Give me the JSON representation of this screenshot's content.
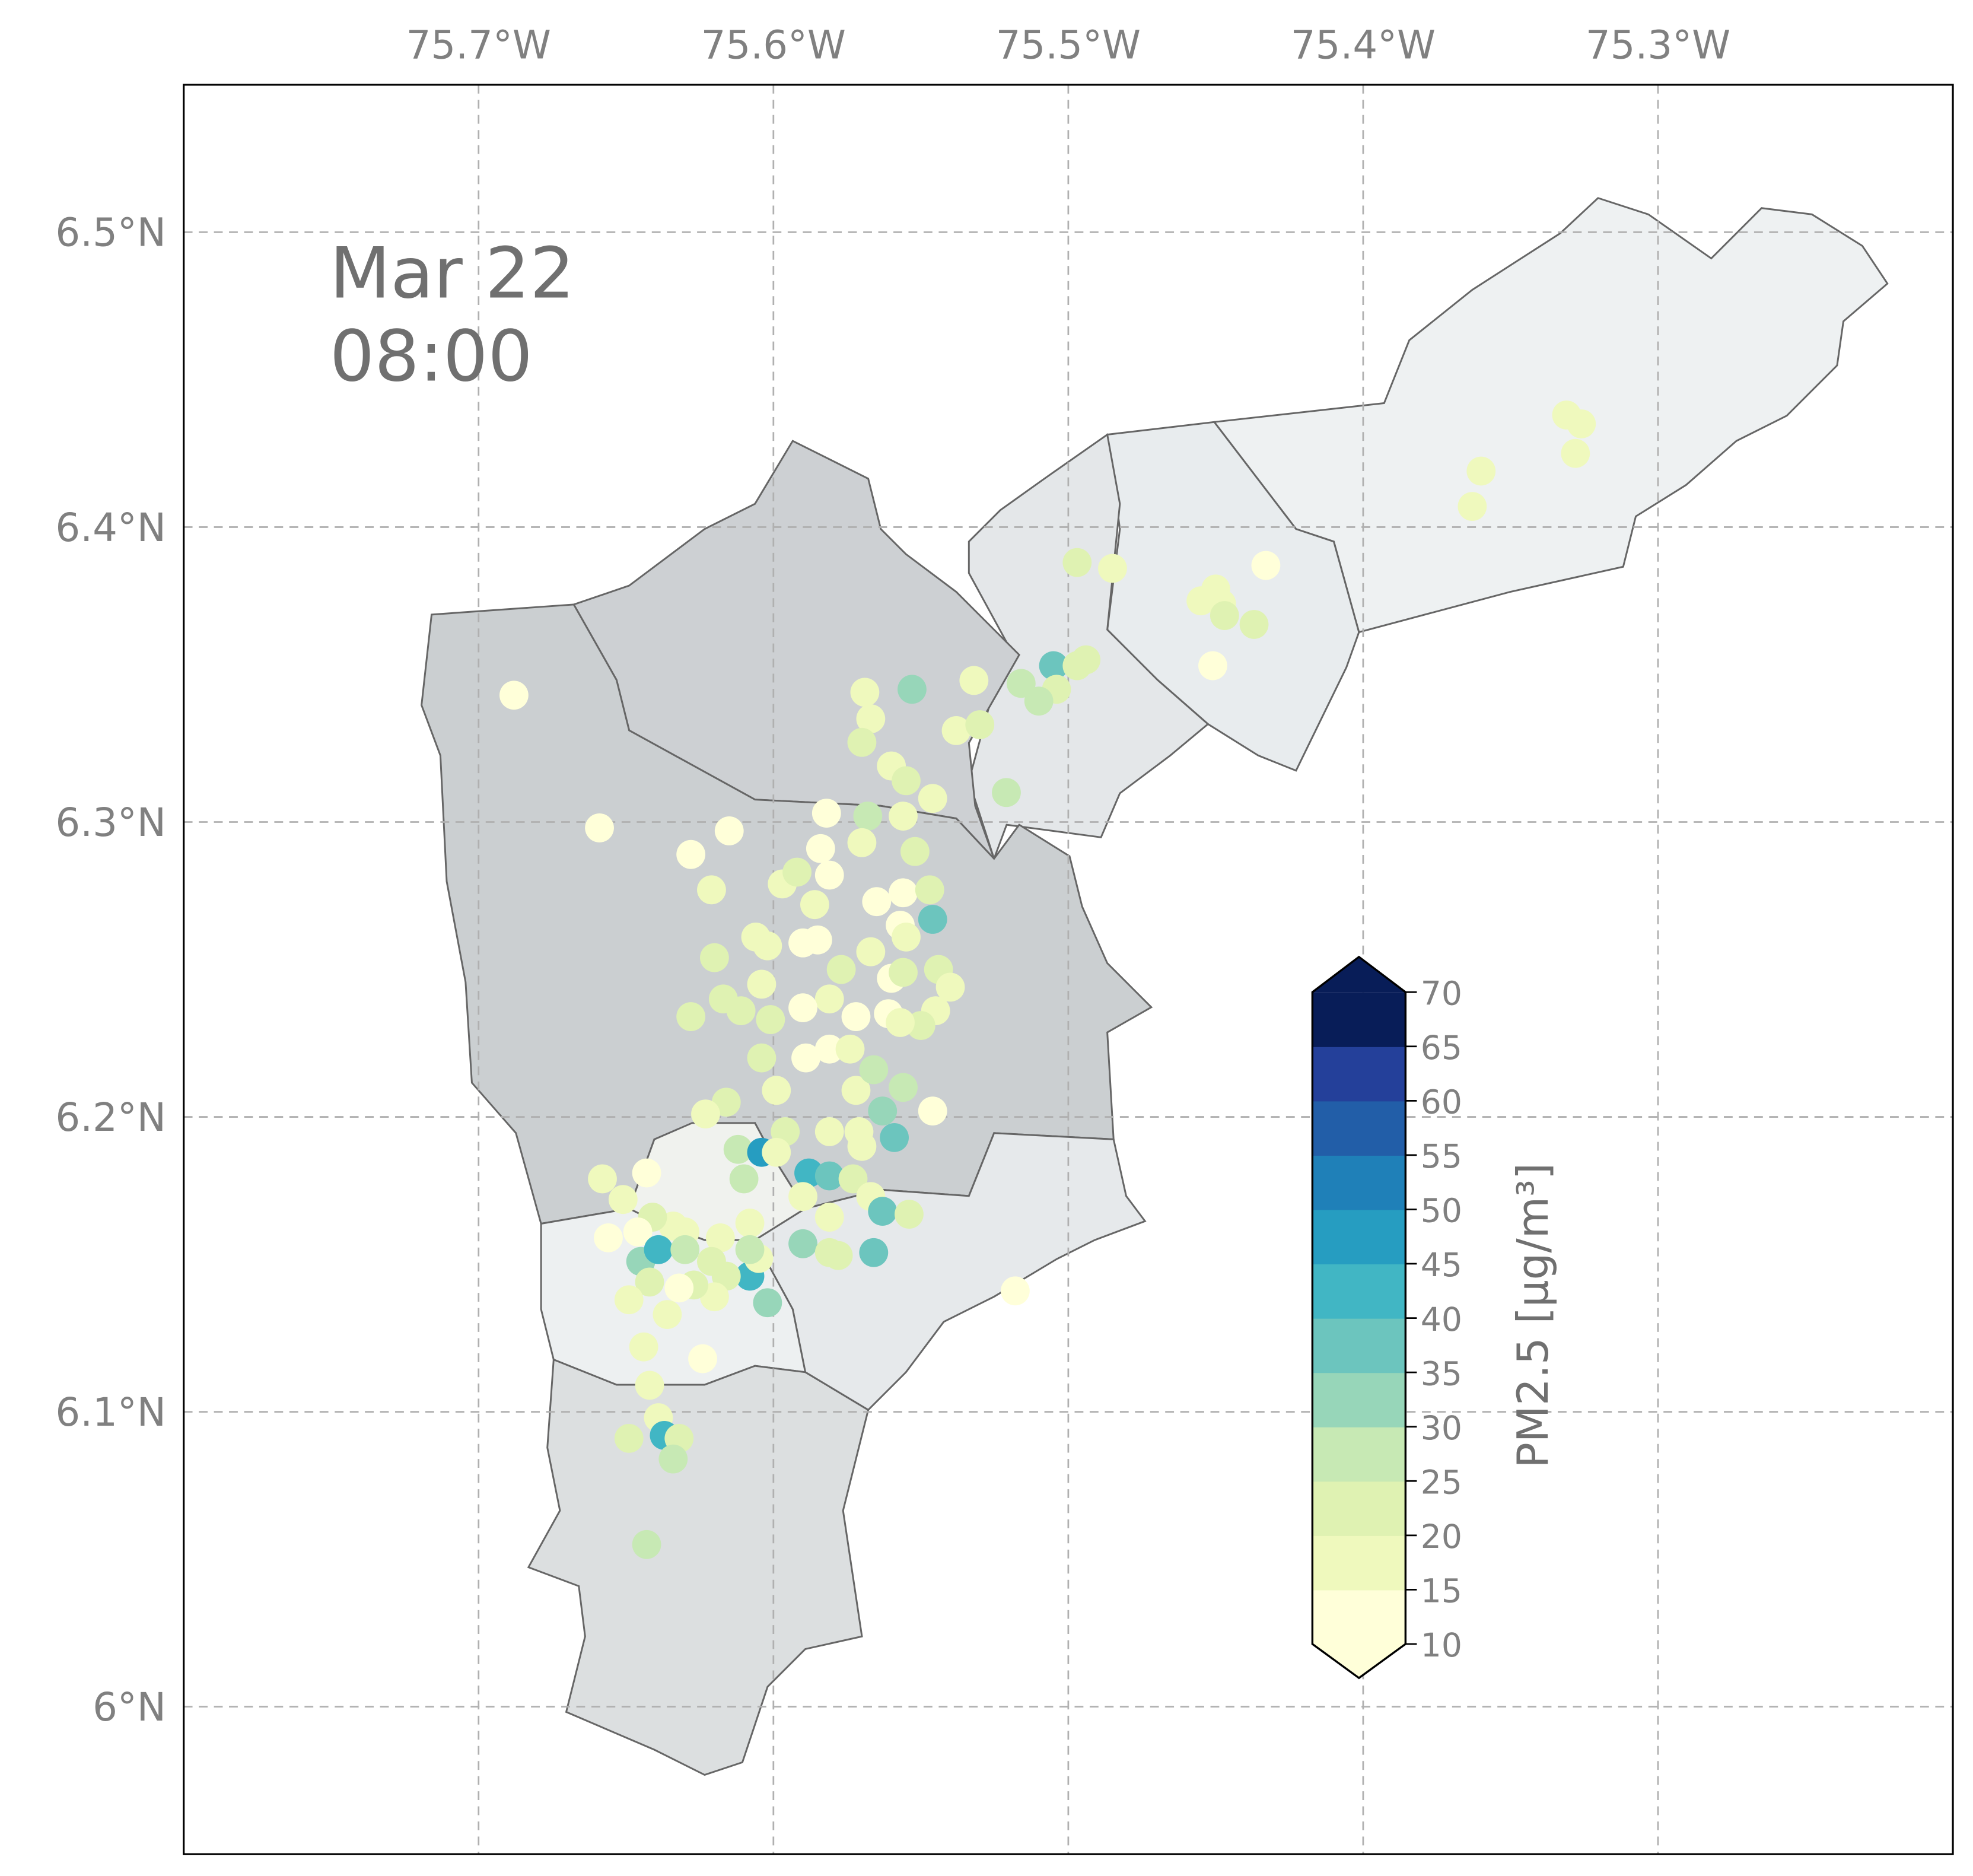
{
  "map": {
    "extent": {
      "lon": [
        -75.8,
        -75.2
      ],
      "lat": [
        5.95,
        6.55
      ]
    },
    "lon_ticks": [
      {
        "value": -75.7,
        "label": "75.7°W"
      },
      {
        "value": -75.6,
        "label": "75.6°W"
      },
      {
        "value": -75.5,
        "label": "75.5°W"
      },
      {
        "value": -75.4,
        "label": "75.4°W"
      },
      {
        "value": -75.3,
        "label": "75.3°W"
      }
    ],
    "lat_ticks": [
      {
        "value": 6.5,
        "label": "6.5°N"
      },
      {
        "value": 6.4,
        "label": "6.4°N"
      },
      {
        "value": 6.3,
        "label": "6.3°N"
      },
      {
        "value": 6.2,
        "label": "6.2°N"
      },
      {
        "value": 6.1,
        "label": "6.1°N"
      },
      {
        "value": 6.0,
        "label": "6°N"
      }
    ],
    "gridlines": true,
    "date_line1": "Mar 22",
    "date_line2": "08:00"
  },
  "colorbar": {
    "label": "PM2.5 [μg/m³]",
    "ticks": [
      "10",
      "15",
      "20",
      "25",
      "30",
      "35",
      "40",
      "45",
      "50",
      "55",
      "60",
      "65",
      "70"
    ],
    "bounds": [
      10,
      15,
      20,
      25,
      30,
      35,
      40,
      45,
      50,
      55,
      60,
      65,
      70
    ],
    "colors": [
      "#ffffd9",
      "#eff9bd",
      "#dff2b2",
      "#c7e9b4",
      "#97d6b9",
      "#6cc5be",
      "#41b6c4",
      "#269dc1",
      "#1f80b8",
      "#225ea8",
      "#24409a",
      "#081d58"
    ],
    "under_color": "#ffffd9",
    "over_color": "#081d58",
    "extend": "both"
  },
  "chart_data": {
    "type": "scatter",
    "xlabel": "",
    "ylabel": "",
    "xlim": [
      -75.8,
      -75.2
    ],
    "ylim": [
      5.95,
      6.55
    ],
    "value_label": "PM2.5 [μg/m³]",
    "points": [
      [
        -75.688,
        6.343,
        10
      ],
      [
        -75.659,
        6.298,
        10
      ],
      [
        -75.628,
        6.289,
        12
      ],
      [
        -75.621,
        6.277,
        18
      ],
      [
        -75.615,
        6.297,
        10
      ],
      [
        -75.62,
        6.254,
        20
      ],
      [
        -75.628,
        6.234,
        22
      ],
      [
        -75.569,
        6.344,
        15
      ],
      [
        -75.553,
        6.345,
        32
      ],
      [
        -75.532,
        6.348,
        18
      ],
      [
        -75.505,
        6.353,
        38
      ],
      [
        -75.497,
        6.353,
        22
      ],
      [
        -75.494,
        6.355,
        22
      ],
      [
        -75.504,
        6.345,
        22
      ],
      [
        -75.51,
        6.341,
        25
      ],
      [
        -75.516,
        6.347,
        25
      ],
      [
        -75.521,
        6.31,
        25
      ],
      [
        -75.497,
        6.388,
        20
      ],
      [
        -75.485,
        6.386,
        15
      ],
      [
        -75.455,
        6.375,
        18
      ],
      [
        -75.45,
        6.379,
        15
      ],
      [
        -75.448,
        6.374,
        15
      ],
      [
        -75.447,
        6.37,
        20
      ],
      [
        -75.451,
        6.353,
        12
      ],
      [
        -75.437,
        6.367,
        20
      ],
      [
        -75.433,
        6.387,
        12
      ],
      [
        -75.363,
        6.407,
        15
      ],
      [
        -75.36,
        6.419,
        15
      ],
      [
        -75.331,
        6.438,
        18
      ],
      [
        -75.326,
        6.435,
        18
      ],
      [
        -75.328,
        6.425,
        18
      ],
      [
        -75.518,
        6.141,
        12
      ],
      [
        -75.538,
        6.331,
        18
      ],
      [
        -75.53,
        6.333,
        22
      ],
      [
        -75.567,
        6.335,
        15
      ],
      [
        -75.57,
        6.327,
        20
      ],
      [
        -75.56,
        6.319,
        15
      ],
      [
        -75.555,
        6.314,
        20
      ],
      [
        -75.546,
        6.308,
        18
      ],
      [
        -75.556,
        6.302,
        15
      ],
      [
        -75.568,
        6.302,
        28
      ],
      [
        -75.57,
        6.293,
        18
      ],
      [
        -75.552,
        6.29,
        22
      ],
      [
        -75.582,
        6.303,
        12
      ],
      [
        -75.584,
        6.291,
        10
      ],
      [
        -75.581,
        6.282,
        10
      ],
      [
        -75.597,
        6.279,
        18
      ],
      [
        -75.592,
        6.283,
        22
      ],
      [
        -75.586,
        6.272,
        15
      ],
      [
        -75.565,
        6.273,
        10
      ],
      [
        -75.556,
        6.276,
        12
      ],
      [
        -75.547,
        6.277,
        20
      ],
      [
        -75.546,
        6.267,
        38
      ],
      [
        -75.557,
        6.265,
        10
      ],
      [
        -75.555,
        6.261,
        18
      ],
      [
        -75.59,
        6.259,
        10
      ],
      [
        -75.585,
        6.26,
        12
      ],
      [
        -75.602,
        6.258,
        15
      ],
      [
        -75.567,
        6.256,
        18
      ],
      [
        -75.577,
        6.25,
        20
      ],
      [
        -75.56,
        6.247,
        12
      ],
      [
        -75.556,
        6.249,
        22
      ],
      [
        -75.544,
        6.25,
        20
      ],
      [
        -75.54,
        6.244,
        18
      ],
      [
        -75.545,
        6.236,
        15
      ],
      [
        -75.55,
        6.231,
        20
      ],
      [
        -75.561,
        6.235,
        12
      ],
      [
        -75.557,
        6.232,
        15
      ],
      [
        -75.572,
        6.234,
        12
      ],
      [
        -75.581,
        6.24,
        15
      ],
      [
        -75.59,
        6.237,
        12
      ],
      [
        -75.601,
        6.233,
        20
      ],
      [
        -75.611,
        6.236,
        22
      ],
      [
        -75.617,
        6.24,
        20
      ],
      [
        -75.604,
        6.245,
        18
      ],
      [
        -75.606,
        6.261,
        15
      ],
      [
        -75.604,
        6.22,
        20
      ],
      [
        -75.589,
        6.22,
        12
      ],
      [
        -75.581,
        6.223,
        12
      ],
      [
        -75.574,
        6.223,
        15
      ],
      [
        -75.572,
        6.209,
        15
      ],
      [
        -75.566,
        6.216,
        25
      ],
      [
        -75.556,
        6.21,
        25
      ],
      [
        -75.546,
        6.202,
        10
      ],
      [
        -75.563,
        6.202,
        30
      ],
      [
        -75.559,
        6.193,
        35
      ],
      [
        -75.599,
        6.209,
        15
      ],
      [
        -75.616,
        6.205,
        20
      ],
      [
        -75.623,
        6.201,
        18
      ],
      [
        -75.596,
        6.195,
        22
      ],
      [
        -75.581,
        6.195,
        18
      ],
      [
        -75.571,
        6.195,
        18
      ],
      [
        -75.57,
        6.19,
        15
      ],
      [
        -75.612,
        6.189,
        25
      ],
      [
        -75.604,
        6.188,
        45
      ],
      [
        -75.599,
        6.188,
        18
      ],
      [
        -75.61,
        6.179,
        28
      ],
      [
        -75.588,
        6.181,
        40
      ],
      [
        -75.581,
        6.18,
        35
      ],
      [
        -75.573,
        6.179,
        22
      ],
      [
        -75.567,
        6.173,
        18
      ],
      [
        -75.59,
        6.173,
        15
      ],
      [
        -75.581,
        6.166,
        18
      ],
      [
        -75.563,
        6.168,
        38
      ],
      [
        -75.554,
        6.167,
        20
      ],
      [
        -75.59,
        6.157,
        30
      ],
      [
        -75.581,
        6.154,
        22
      ],
      [
        -75.578,
        6.153,
        20
      ],
      [
        -75.566,
        6.154,
        38
      ],
      [
        -75.602,
        6.137,
        32
      ],
      [
        -75.608,
        6.146,
        40
      ],
      [
        -75.605,
        6.152,
        18
      ],
      [
        -75.608,
        6.164,
        18
      ],
      [
        -75.608,
        6.155,
        25
      ],
      [
        -75.618,
        6.159,
        18
      ],
      [
        -75.621,
        6.151,
        22
      ],
      [
        -75.616,
        6.146,
        20
      ],
      [
        -75.62,
        6.139,
        18
      ],
      [
        -75.627,
        6.143,
        20
      ],
      [
        -75.634,
        6.163,
        18
      ],
      [
        -75.641,
        6.166,
        20
      ],
      [
        -75.63,
        6.161,
        15
      ],
      [
        -75.646,
        6.161,
        12
      ],
      [
        -75.651,
        6.172,
        15
      ],
      [
        -75.658,
        6.179,
        15
      ],
      [
        -75.643,
        6.181,
        12
      ],
      [
        -75.656,
        6.159,
        12
      ],
      [
        -75.645,
        6.151,
        30
      ],
      [
        -75.639,
        6.155,
        40
      ],
      [
        -75.63,
        6.155,
        25
      ],
      [
        -75.642,
        6.144,
        20
      ],
      [
        -75.649,
        6.138,
        18
      ],
      [
        -75.632,
        6.142,
        12
      ],
      [
        -75.636,
        6.133,
        18
      ],
      [
        -75.624,
        6.118,
        10
      ],
      [
        -75.644,
        6.122,
        15
      ],
      [
        -75.642,
        6.109,
        18
      ],
      [
        -75.639,
        6.098,
        18
      ],
      [
        -75.637,
        6.092,
        40
      ],
      [
        -75.632,
        6.091,
        22
      ],
      [
        -75.649,
        6.091,
        20
      ],
      [
        -75.634,
        6.084,
        25
      ],
      [
        -75.643,
        6.055,
        25
      ]
    ]
  }
}
